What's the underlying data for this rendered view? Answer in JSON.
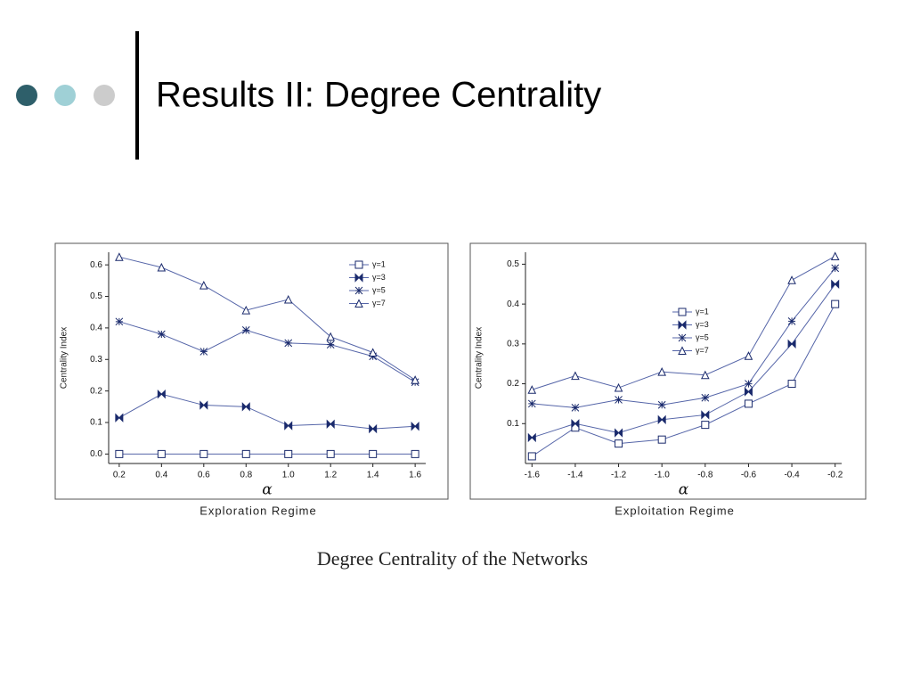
{
  "title": "Results II: Degree Centrality",
  "caption": "Degree Centrality of the Networks",
  "chart_data": [
    {
      "type": "line",
      "x_label": "α",
      "x_title": "Exploration Regime",
      "y_label": "Centrality Index",
      "x": [
        0.2,
        0.4,
        0.6,
        0.8,
        1.0,
        1.2,
        1.4,
        1.6
      ],
      "xlim": [
        0.15,
        1.65
      ],
      "xticks": [
        0.2,
        0.4,
        0.6,
        0.8,
        {
          "value": 1.0,
          "label": "1.0"
        },
        1.2,
        1.4,
        1.6
      ],
      "ylim": [
        -0.03,
        0.64
      ],
      "yticks": [
        {
          "value": 0,
          "label": "0.0"
        },
        0.1,
        0.2,
        0.3,
        0.4,
        0.5,
        0.6
      ],
      "legend": "upper right",
      "series": [
        {
          "name": "γ=1",
          "color": "#1a2a6c",
          "values": [
            0,
            0,
            0,
            0,
            0,
            0,
            0,
            0
          ]
        },
        {
          "name": "γ=3",
          "color": "#1a2a6c",
          "values": [
            0.115,
            0.19,
            0.155,
            0.15,
            0.09,
            0.095,
            0.08,
            0.088
          ]
        },
        {
          "name": "γ=5",
          "color": "#1a2a6c",
          "values": [
            0.42,
            0.38,
            0.325,
            0.393,
            0.352,
            0.347,
            0.31,
            0.228
          ]
        },
        {
          "name": "γ=7",
          "color": "#1a2a6c",
          "values": [
            0.625,
            0.592,
            0.535,
            0.456,
            0.49,
            0.372,
            0.322,
            0.235
          ]
        }
      ]
    },
    {
      "type": "line",
      "x_label": "α",
      "x_title": "Exploitation Regime",
      "y_label": "Centrality Index",
      "x": [
        -1.6,
        -1.4,
        -1.2,
        -1.0,
        -0.8,
        -0.6,
        -0.4,
        -0.2
      ],
      "xlim": [
        -1.63,
        -0.17
      ],
      "xticks": [
        -1.6,
        -1.4,
        -1.2,
        {
          "value": -1.0,
          "label": "-1.0"
        },
        -0.8,
        -0.6,
        -0.4,
        -0.2
      ],
      "ylim": [
        0,
        0.53
      ],
      "yticks": [
        0.1,
        0.2,
        0.3,
        0.4,
        0.5
      ],
      "legend": "center left",
      "series": [
        {
          "name": "γ=1",
          "color": "#1a2a6c",
          "values": [
            0.018,
            0.09,
            0.05,
            0.06,
            0.097,
            0.15,
            0.2,
            0.4
          ]
        },
        {
          "name": "γ=3",
          "color": "#1a2a6c",
          "values": [
            0.065,
            0.1,
            0.077,
            0.11,
            0.122,
            0.18,
            0.3,
            0.45
          ]
        },
        {
          "name": "γ=5",
          "color": "#1a2a6c",
          "values": [
            0.15,
            0.14,
            0.16,
            0.147,
            0.165,
            0.2,
            0.357,
            0.49
          ]
        },
        {
          "name": "γ=7",
          "color": "#1a2a6c",
          "values": [
            0.185,
            0.22,
            0.19,
            0.23,
            0.222,
            0.27,
            0.46,
            0.52
          ]
        }
      ]
    }
  ]
}
